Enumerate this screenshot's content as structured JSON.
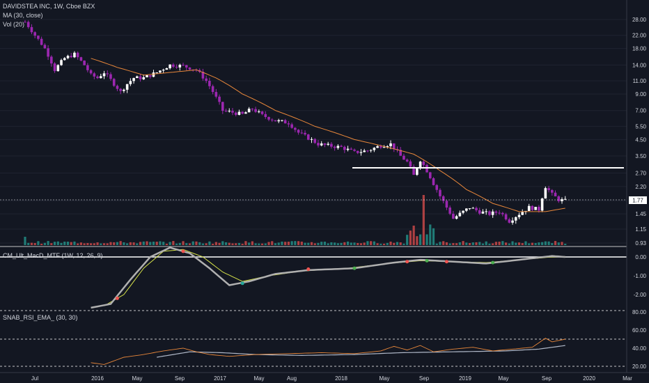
{
  "header": {
    "symbol_line": "DAVIDSTEA INC, 1W, Cboe BZX",
    "ma_label": "MA (30, close)",
    "vol_label": "Vol (20)"
  },
  "panes": {
    "macd_label": "CM_Ult_MacD_MTF (1W, 12, 26, 9)",
    "rsi_label": "SNAB_RSI_EMA_ (30, 30)"
  },
  "colors": {
    "background": "#131722",
    "up_candle": "#ffffff",
    "down_candle": "#9c27b0",
    "ma_line": "#e8873a",
    "resistance_line": "#ffffff",
    "volume_up": "#26a69a",
    "volume_down": "#ef5350",
    "macd_line": "#9e9e9e",
    "signal_line": "#d7e34a",
    "rsi_line": "#e8873a",
    "rsi_ema": "#b0b8c8"
  },
  "chart_data": [
    {
      "type": "candlestick",
      "title": "DAVIDSTEA INC, 1W, Cboe BZX",
      "y_scale": "log",
      "y_ticks": [
        "28.00",
        "22.00",
        "18.00",
        "14.00",
        "11.00",
        "9.00",
        "7.00",
        "5.50",
        "4.50",
        "3.50",
        "2.70",
        "2.20",
        "1.77",
        "1.45",
        "1.15",
        "0.93"
      ],
      "x_ticks": [
        "Jul",
        "2016",
        "May",
        "Sep",
        "2017",
        "May",
        "Aug",
        "2018",
        "May",
        "Sep",
        "2019",
        "May",
        "Sep",
        "2020",
        "Mar"
      ],
      "last_price": "1.77",
      "resistance_level": 2.9,
      "price_path": [
        [
          0,
          27.0
        ],
        [
          3,
          22.0
        ],
        [
          6,
          18.0
        ],
        [
          9,
          13.0
        ],
        [
          12,
          15.5
        ],
        [
          15,
          16.5
        ],
        [
          18,
          14.0
        ],
        [
          20,
          12.0
        ],
        [
          22,
          11.5
        ],
        [
          24,
          12.5
        ],
        [
          27,
          10.5
        ],
        [
          29,
          9.3
        ],
        [
          31,
          10.5
        ],
        [
          33,
          11.5
        ],
        [
          36,
          11.5
        ],
        [
          40,
          12.5
        ],
        [
          44,
          14.0
        ],
        [
          48,
          13.8
        ],
        [
          52,
          13.0
        ],
        [
          55,
          11.0
        ],
        [
          58,
          8.5
        ],
        [
          60,
          7.0
        ],
        [
          63,
          6.8
        ],
        [
          66,
          6.6
        ],
        [
          69,
          7.2
        ],
        [
          72,
          6.5
        ],
        [
          76,
          6.0
        ],
        [
          80,
          5.8
        ],
        [
          83,
          5.0
        ],
        [
          86,
          4.6
        ],
        [
          89,
          4.2
        ],
        [
          92,
          4.1
        ],
        [
          96,
          4.0
        ],
        [
          100,
          3.7
        ],
        [
          104,
          3.8
        ],
        [
          108,
          4.1
        ],
        [
          111,
          4.2
        ],
        [
          114,
          3.5
        ],
        [
          116,
          3.2
        ],
        [
          118,
          2.6
        ],
        [
          120,
          3.3
        ],
        [
          122,
          2.8
        ],
        [
          124,
          2.3
        ],
        [
          126,
          1.9
        ],
        [
          128,
          1.6
        ],
        [
          130,
          1.35
        ],
        [
          132,
          1.45
        ],
        [
          135,
          1.6
        ],
        [
          138,
          1.5
        ],
        [
          141,
          1.45
        ],
        [
          144,
          1.5
        ],
        [
          147,
          1.3
        ],
        [
          150,
          1.45
        ],
        [
          153,
          1.6
        ],
        [
          156,
          1.55
        ],
        [
          158,
          2.2
        ],
        [
          160,
          1.95
        ],
        [
          162,
          1.8
        ],
        [
          164,
          1.77
        ]
      ],
      "ma_path": [
        [
          20,
          15.5
        ],
        [
          28,
          13.5
        ],
        [
          36,
          12.0
        ],
        [
          44,
          12.5
        ],
        [
          52,
          13.0
        ],
        [
          58,
          11.5
        ],
        [
          66,
          9.0
        ],
        [
          76,
          7.0
        ],
        [
          88,
          5.5
        ],
        [
          100,
          4.5
        ],
        [
          110,
          4.0
        ],
        [
          118,
          3.6
        ],
        [
          126,
          2.8
        ],
        [
          134,
          2.1
        ],
        [
          142,
          1.7
        ],
        [
          150,
          1.5
        ],
        [
          158,
          1.5
        ],
        [
          164,
          1.58
        ]
      ],
      "volume_hint": "volume bars along bottom of price pane; large spike near Oct 2018"
    },
    {
      "type": "line",
      "title": "CM_Ult_MacD_MTF (1W, 12, 26, 9)",
      "y_ticks": [
        "0.00",
        "-1.00",
        "-2.00"
      ],
      "series": [
        {
          "values_path": [
            [
              20,
              -2.7
            ],
            [
              26,
              -2.5
            ],
            [
              32,
              -1.2
            ],
            [
              38,
              0.0
            ],
            [
              44,
              0.5
            ],
            [
              50,
              0.2
            ],
            [
              56,
              -0.6
            ],
            [
              62,
              -1.5
            ],
            [
              68,
              -1.3
            ],
            [
              76,
              -0.9
            ],
            [
              86,
              -0.7
            ],
            [
              100,
              -0.6
            ],
            [
              112,
              -0.3
            ],
            [
              120,
              -0.15
            ],
            [
              130,
              -0.25
            ],
            [
              140,
              -0.35
            ],
            [
              150,
              -0.15
            ],
            [
              160,
              0.05
            ],
            [
              164,
              0.0
            ]
          ]
        },
        {
          "values_path": [
            [
              24,
              -2.6
            ],
            [
              30,
              -2.0
            ],
            [
              36,
              -0.6
            ],
            [
              42,
              0.3
            ],
            [
              48,
              0.4
            ],
            [
              54,
              0.0
            ],
            [
              60,
              -0.8
            ],
            [
              66,
              -1.3
            ],
            [
              74,
              -1.0
            ],
            [
              84,
              -0.75
            ],
            [
              98,
              -0.6
            ],
            [
              110,
              -0.35
            ],
            [
              120,
              -0.2
            ],
            [
              130,
              -0.25
            ],
            [
              140,
              -0.3
            ],
            [
              150,
              -0.15
            ],
            [
              160,
              0.0
            ],
            [
              164,
              0.0
            ]
          ]
        }
      ]
    },
    {
      "type": "line",
      "title": "SNAB_RSI_EMA_ (30, 30)",
      "y_ticks": [
        "80.00",
        "60.00",
        "40.00",
        "20.00"
      ],
      "ylim": [
        15,
        85
      ],
      "reference_lines": [
        80,
        50,
        20
      ],
      "series": [
        {
          "values_path": [
            [
              20,
              24
            ],
            [
              24,
              22
            ],
            [
              30,
              30
            ],
            [
              36,
              33
            ],
            [
              42,
              37
            ],
            [
              48,
              40
            ],
            [
              52,
              36
            ],
            [
              56,
              33
            ],
            [
              62,
              31
            ],
            [
              70,
              33
            ],
            [
              80,
              34
            ],
            [
              90,
              35
            ],
            [
              100,
              34
            ],
            [
              108,
              37
            ],
            [
              112,
              42
            ],
            [
              116,
              38
            ],
            [
              120,
              43
            ],
            [
              124,
              36
            ],
            [
              130,
              39
            ],
            [
              136,
              41
            ],
            [
              142,
              37
            ],
            [
              148,
              39
            ],
            [
              154,
              41
            ],
            [
              158,
              51
            ],
            [
              160,
              47
            ],
            [
              164,
              50
            ]
          ]
        },
        {
          "values_path": [
            [
              40,
              30
            ],
            [
              50,
              36
            ],
            [
              60,
              35
            ],
            [
              70,
              33
            ],
            [
              84,
              32
            ],
            [
              100,
              33
            ],
            [
              114,
              35
            ],
            [
              130,
              36
            ],
            [
              146,
              37
            ],
            [
              156,
              39
            ],
            [
              164,
              43
            ]
          ]
        }
      ]
    }
  ]
}
